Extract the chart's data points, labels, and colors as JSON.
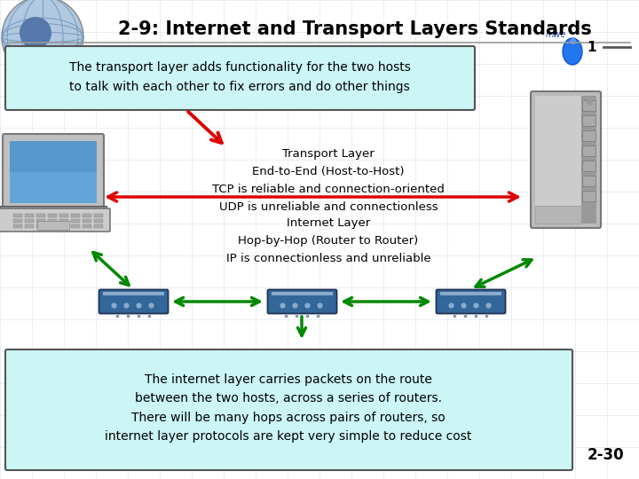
{
  "title": "2-9: Internet and Transport Layers Standards",
  "title_fontsize": 15,
  "title_fontweight": "bold",
  "bg_color": "#ffffff",
  "top_box_text": "The transport layer adds functionality for the two hosts\nto talk with each other to fix errors and do other things",
  "top_box_facecolor": "#ccf5f5",
  "top_box_edgecolor": "#555555",
  "transport_text": "Transport Layer\nEnd-to-End (Host-to-Host)\nTCP is reliable and connection-oriented\nUDP is unreliable and connectionless",
  "internet_text": "Internet Layer\nHop-by-Hop (Router to Router)\nIP is connectionless and unreliable",
  "bottom_box_text": "The internet layer carries packets on the route\nbetween the two hosts, across a series of routers.\nThere will be many hops across pairs of routers, so\ninternet layer protocols are kept very simple to reduce cost",
  "bottom_box_facecolor": "#ccf5f5",
  "bottom_box_edgecolor": "#555555",
  "page_num": "2-30",
  "slide_number": "1",
  "red_arrow_color": "#dd0000",
  "green_arrow_color": "#008800",
  "text_color": "#000000",
  "header_line_color": "#999999",
  "router_color": "#336699",
  "router_dark": "#223355",
  "router_highlight": "#88aacc",
  "laptop_screen_bg": "#4499cc",
  "laptop_screen_dark": "#1a5577",
  "laptop_frame": "#aaaaaa",
  "laptop_kbd": "#cccccc",
  "server_body": "#aaaaaa",
  "server_mid": "#888888",
  "server_dark": "#666666"
}
